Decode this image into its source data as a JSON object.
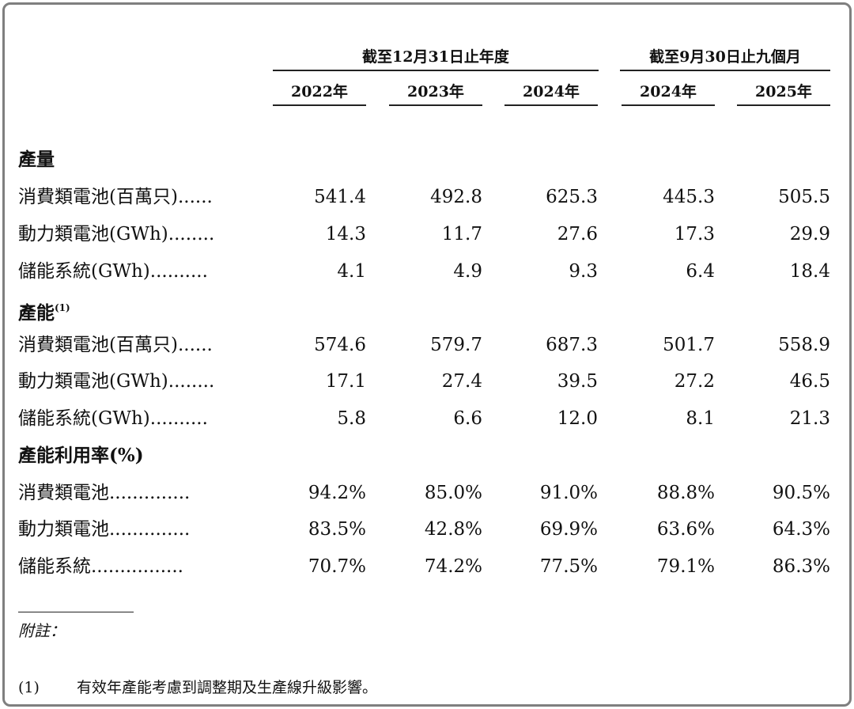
{
  "header": {
    "group_full_year": "截至12月31日止年度",
    "group_nine_months": "截至9月30日止九個月",
    "years": [
      "2022年",
      "2023年",
      "2024年",
      "2024年",
      "2025年"
    ]
  },
  "sections": [
    {
      "title": "產量",
      "footnote_marker": "",
      "rows": [
        {
          "label": "消費類電池(百萬只)......",
          "values": [
            "541.4",
            "492.8",
            "625.3",
            "445.3",
            "505.5"
          ]
        },
        {
          "label": "動力類電池(GWh)........",
          "values": [
            "14.3",
            "11.7",
            "27.6",
            "17.3",
            "29.9"
          ]
        },
        {
          "label": "儲能系統(GWh)..........",
          "values": [
            "4.1",
            "4.9",
            "9.3",
            "6.4",
            "18.4"
          ]
        }
      ]
    },
    {
      "title": "產能",
      "footnote_marker": "(1)",
      "rows": [
        {
          "label": "消費類電池(百萬只)......",
          "values": [
            "574.6",
            "579.7",
            "687.3",
            "501.7",
            "558.9"
          ]
        },
        {
          "label": "動力類電池(GWh)........",
          "values": [
            "17.1",
            "27.4",
            "39.5",
            "27.2",
            "46.5"
          ]
        },
        {
          "label": "儲能系統(GWh)..........",
          "values": [
            "5.8",
            "6.6",
            "12.0",
            "8.1",
            "21.3"
          ]
        }
      ]
    },
    {
      "title": "產能利用率(%)",
      "footnote_marker": "",
      "rows": [
        {
          "label": "消費類電池..............",
          "values": [
            "94.2%",
            "85.0%",
            "91.0%",
            "88.8%",
            "90.5%"
          ]
        },
        {
          "label": "動力類電池..............",
          "values": [
            "83.5%",
            "42.8%",
            "69.9%",
            "63.6%",
            "64.3%"
          ]
        },
        {
          "label": "儲能系統................",
          "values": [
            "70.7%",
            "74.2%",
            "77.5%",
            "79.1%",
            "86.3%"
          ]
        }
      ]
    }
  ],
  "notes": {
    "title": "附註：",
    "items": [
      {
        "num": "(1)",
        "text": "有效年產能考慮到調整期及生產線升級影響。"
      }
    ]
  }
}
